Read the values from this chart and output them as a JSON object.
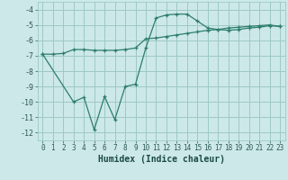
{
  "xlabel": "Humidex (Indice chaleur)",
  "bg_color": "#cce8e8",
  "grid_color": "#9ec8c8",
  "line_color": "#2d7d6e",
  "xlim": [
    -0.5,
    23.5
  ],
  "ylim": [
    -12.5,
    -3.5
  ],
  "xticks": [
    0,
    1,
    2,
    3,
    4,
    5,
    6,
    7,
    8,
    9,
    10,
    11,
    12,
    13,
    14,
    15,
    16,
    17,
    18,
    19,
    20,
    21,
    22,
    23
  ],
  "yticks": [
    -12,
    -11,
    -10,
    -9,
    -8,
    -7,
    -6,
    -5,
    -4
  ],
  "line1_x": [
    0,
    1,
    2,
    3,
    4,
    5,
    6,
    7,
    8,
    9,
    10,
    11,
    12,
    13,
    14,
    15,
    16,
    17,
    18,
    19,
    20,
    21,
    22,
    23
  ],
  "line1_y": [
    -6.9,
    -6.9,
    -6.85,
    -6.6,
    -6.6,
    -6.65,
    -6.65,
    -6.65,
    -6.6,
    -6.5,
    -5.9,
    -5.85,
    -5.75,
    -5.65,
    -5.55,
    -5.45,
    -5.35,
    -5.3,
    -5.2,
    -5.15,
    -5.1,
    -5.05,
    -5.0,
    -5.1
  ],
  "line2_x": [
    0,
    3,
    4,
    5,
    6,
    7,
    8,
    9,
    10,
    11,
    12,
    13,
    14,
    15,
    16,
    17,
    18,
    19,
    20,
    21,
    22,
    23
  ],
  "line2_y": [
    -6.9,
    -10.0,
    -9.7,
    -11.8,
    -9.65,
    -11.15,
    -9.0,
    -8.85,
    -6.5,
    -4.55,
    -4.35,
    -4.3,
    -4.3,
    -4.75,
    -5.2,
    -5.3,
    -5.35,
    -5.3,
    -5.2,
    -5.15,
    -5.05,
    -5.1
  ]
}
